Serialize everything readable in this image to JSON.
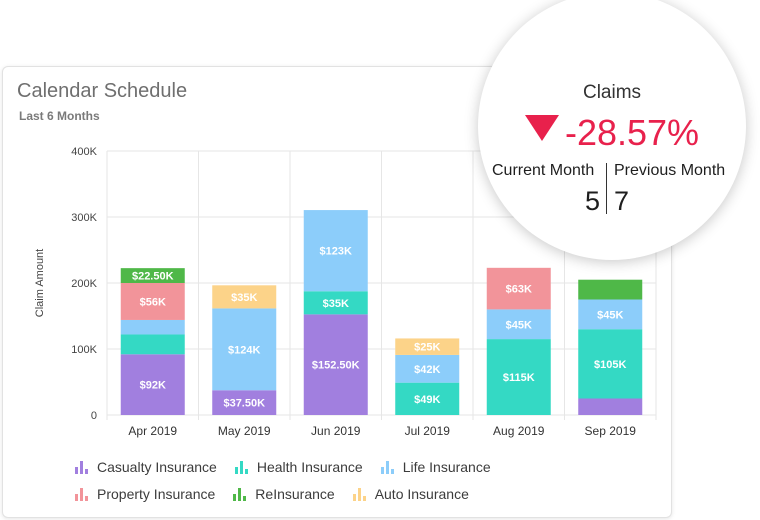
{
  "card": {
    "title": "Calendar Schedule",
    "subtitle": "Last 6 Months"
  },
  "kpi": {
    "title": "Claims",
    "change": "-28.57%",
    "trend_icon": "triangle-down-icon",
    "current_label": "Current Month",
    "previous_label": "Previous Month",
    "current_value": "5",
    "previous_value": "7",
    "change_color": "#e8214c"
  },
  "chart_data": {
    "type": "bar",
    "stacked": true,
    "ylabel": "Claim Amount",
    "xlabel": "",
    "ylim": [
      0,
      400000
    ],
    "yticks": [
      0,
      100000,
      200000,
      300000,
      400000
    ],
    "ytick_labels": [
      "0",
      "100K",
      "200K",
      "300K",
      "400K"
    ],
    "grid": true,
    "legend_position": "bottom",
    "categories": [
      "Apr 2019",
      "May 2019",
      "Jun 2019",
      "Jul 2019",
      "Aug 2019",
      "Sep 2019"
    ],
    "series": [
      {
        "name": "Casualty Insurance",
        "color": "#a17fdf",
        "values": [
          92000,
          37500,
          152500,
          0,
          0,
          25000
        ],
        "labels": [
          "$92K",
          "$37.50K",
          "$152.50K",
          "",
          "",
          ""
        ]
      },
      {
        "name": "Health Insurance",
        "color": "#34d9c4",
        "values": [
          30000,
          0,
          35000,
          49000,
          115000,
          105000
        ],
        "labels": [
          "",
          "",
          "$35K",
          "$49K",
          "$115K",
          "$105K"
        ]
      },
      {
        "name": "Life Insurance",
        "color": "#8ccdfa",
        "values": [
          22000,
          124000,
          123000,
          42000,
          45000,
          45000
        ],
        "labels": [
          "",
          "$124K",
          "$123K",
          "$42K",
          "$45K",
          "$45K"
        ]
      },
      {
        "name": "Property Insurance",
        "color": "#f2949a",
        "values": [
          56000,
          0,
          0,
          0,
          63000,
          0
        ],
        "labels": [
          "$56K",
          "",
          "",
          "",
          "$63K",
          ""
        ]
      },
      {
        "name": "ReInsurance",
        "color": "#4fb848",
        "values": [
          22500,
          0,
          0,
          0,
          0,
          30000
        ],
        "labels": [
          "$22.50K",
          "",
          "",
          "",
          "",
          ""
        ]
      },
      {
        "name": "Auto Insurance",
        "color": "#fcd389",
        "values": [
          0,
          35000,
          0,
          25000,
          0,
          0
        ],
        "labels": [
          "",
          "$35K",
          "",
          "$25K",
          "",
          ""
        ]
      }
    ]
  }
}
